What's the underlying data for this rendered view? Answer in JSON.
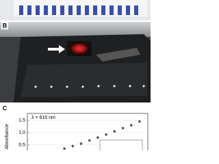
{
  "panels": {
    "b_label": "B",
    "c_label": "C"
  },
  "chart_data": {
    "type": "scatter",
    "annotation": "λ = 610 nm",
    "y_label": "Absorbance",
    "categories": [
      null,
      null,
      null,
      null,
      null,
      null,
      null,
      null,
      null,
      null
    ],
    "values": [
      0.35,
      0.45,
      0.55,
      0.68,
      0.8,
      0.92,
      1.05,
      1.18,
      1.3,
      1.45
    ],
    "color": "#555555",
    "ylim": [
      0.2,
      1.7
    ],
    "yticks": [
      0.5,
      {
        "value": 1,
        "label": "1.0"
      },
      1.5
    ],
    "grid": true
  }
}
